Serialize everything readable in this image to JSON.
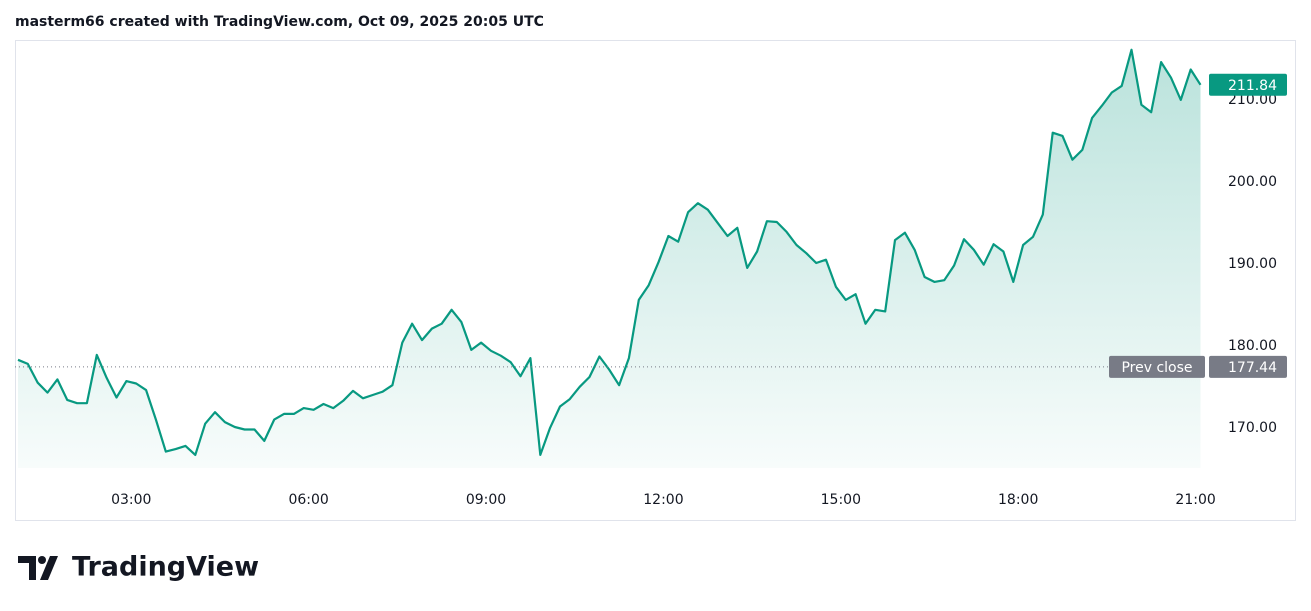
{
  "chart_data": {
    "type": "area",
    "title": "masterm66 created with TradingView.com, Oct 09, 2025 20:05 UTC",
    "brand": "TradingView",
    "color": "#089981",
    "grid": false,
    "x": [
      65,
      75,
      85,
      95,
      105,
      115,
      125,
      135,
      145,
      155,
      165,
      175,
      185,
      195,
      205,
      215,
      225,
      235,
      245,
      255,
      265,
      275,
      285,
      295,
      305,
      315,
      325,
      335,
      345,
      355,
      365,
      375,
      385,
      395,
      405,
      415,
      425,
      435,
      445,
      455,
      465,
      475,
      485,
      495,
      505,
      515,
      525,
      535,
      545,
      555,
      565,
      575,
      585,
      595,
      605,
      615,
      625,
      635,
      645,
      655,
      665,
      675,
      685,
      695,
      705,
      715,
      725,
      735,
      745,
      755,
      765,
      775,
      785,
      795,
      805,
      815,
      825,
      835,
      845,
      855,
      865,
      875,
      885,
      895,
      905,
      915,
      925,
      935,
      945,
      955,
      965,
      975,
      985,
      995,
      1005,
      1015,
      1025,
      1035,
      1045,
      1055,
      1065,
      1075,
      1085,
      1095,
      1105,
      1115,
      1125,
      1135,
      1145,
      1155,
      1165,
      1175,
      1185,
      1195,
      1205,
      1215,
      1225,
      1235,
      1245,
      1255,
      1265
    ],
    "values": [
      178.3,
      177.8,
      175.5,
      174.3,
      175.9,
      173.4,
      173.0,
      173.0,
      178.9,
      176.1,
      173.7,
      175.7,
      175.4,
      174.6,
      171.0,
      167.1,
      167.4,
      167.8,
      166.7,
      170.5,
      171.9,
      170.7,
      170.1,
      169.8,
      169.8,
      168.4,
      171.0,
      171.7,
      171.7,
      172.4,
      172.2,
      172.9,
      172.4,
      173.3,
      174.5,
      173.6,
      174.0,
      174.4,
      175.2,
      180.4,
      182.7,
      180.7,
      182.1,
      182.7,
      184.4,
      182.9,
      179.5,
      180.4,
      179.4,
      178.8,
      178.0,
      176.3,
      178.5,
      166.7,
      170.0,
      172.6,
      173.5,
      175.0,
      176.2,
      178.7,
      177.1,
      175.2,
      178.5,
      185.6,
      187.4,
      190.2,
      193.4,
      192.7,
      196.3,
      197.4,
      196.6,
      195.0,
      193.4,
      194.4,
      189.5,
      191.5,
      195.2,
      195.1,
      193.9,
      192.3,
      191.3,
      190.1,
      190.5,
      187.2,
      185.6,
      186.3,
      182.7,
      184.4,
      184.2,
      192.9,
      193.8,
      191.7,
      188.4,
      187.8,
      188.0,
      189.8,
      193.0,
      191.7,
      189.9,
      192.4,
      191.5,
      187.8,
      192.3,
      193.3,
      196.0,
      206.0,
      205.6,
      202.7,
      203.9,
      207.8,
      209.3,
      210.9,
      211.7,
      216.1,
      209.4,
      208.5,
      214.6,
      212.7,
      210.0,
      213.7,
      211.84
    ],
    "xlim": [
      62,
      1266
    ],
    "ylim": [
      165.1,
      217.3
    ],
    "xticks": [
      {
        "value": 180,
        "label": "03:00"
      },
      {
        "value": 360,
        "label": "06:00"
      },
      {
        "value": 540,
        "label": "09:00"
      },
      {
        "value": 720,
        "label": "12:00"
      },
      {
        "value": 900,
        "label": "15:00"
      },
      {
        "value": 1080,
        "label": "18:00"
      },
      {
        "value": 1260,
        "label": "21:00"
      }
    ],
    "yticks": [
      {
        "value": 170,
        "label": "170.00"
      },
      {
        "value": 180,
        "label": "180.00"
      },
      {
        "value": 190,
        "label": "190.00"
      },
      {
        "value": 200,
        "label": "200.00"
      },
      {
        "value": 210,
        "label": "210.00"
      }
    ],
    "prev_close": {
      "label": "Prev close",
      "value": 177.44
    }
  }
}
